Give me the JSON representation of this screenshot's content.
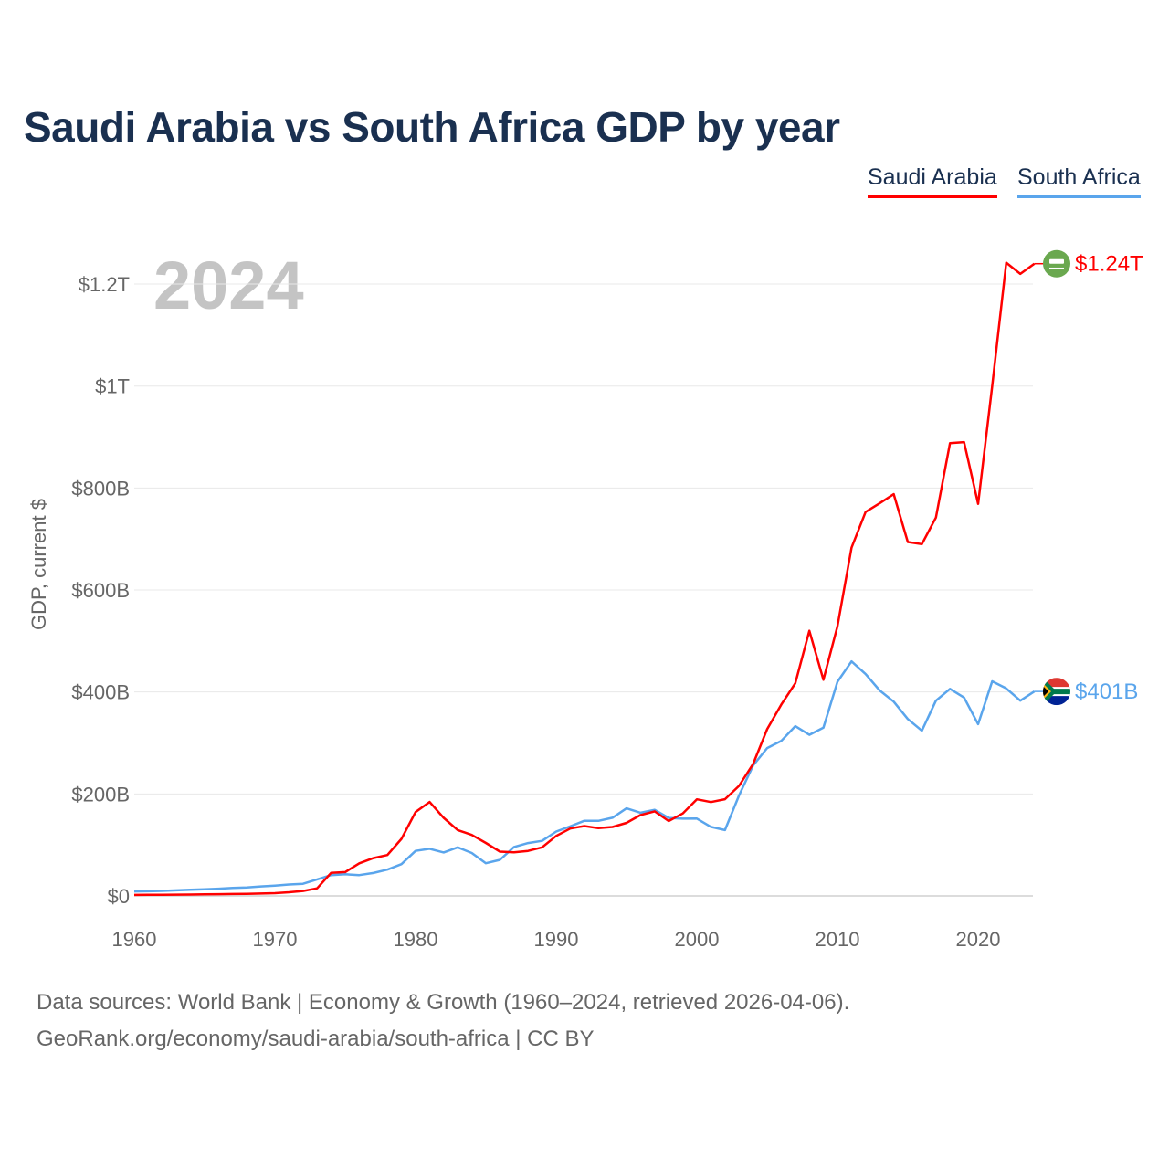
{
  "chart_data": {
    "type": "line",
    "title": "Saudi Arabia vs South Africa GDP by year",
    "ylabel": "GDP, current $",
    "xlabel": "",
    "year_watermark": "2024",
    "xlim": [
      1960,
      2024
    ],
    "ylim": [
      0,
      1300
    ],
    "x_ticks": [
      1960,
      1970,
      1980,
      1990,
      2000,
      2010,
      2020
    ],
    "y_ticks": [
      {
        "v": 0,
        "label": "$0"
      },
      {
        "v": 200,
        "label": "$200B"
      },
      {
        "v": 400,
        "label": "$400B"
      },
      {
        "v": 600,
        "label": "$600B"
      },
      {
        "v": 800,
        "label": "$800B"
      },
      {
        "v": 1000,
        "label": "$1T"
      },
      {
        "v": 1200,
        "label": "$1.2T"
      }
    ],
    "units": "billions USD",
    "legend_placement": "top-right",
    "x": [
      1960,
      1961,
      1962,
      1963,
      1964,
      1965,
      1966,
      1967,
      1968,
      1969,
      1970,
      1971,
      1972,
      1973,
      1974,
      1975,
      1976,
      1977,
      1978,
      1979,
      1980,
      1981,
      1982,
      1983,
      1984,
      1985,
      1986,
      1987,
      1988,
      1989,
      1990,
      1991,
      1992,
      1993,
      1994,
      1995,
      1996,
      1997,
      1998,
      1999,
      2000,
      2001,
      2002,
      2003,
      2004,
      2005,
      2006,
      2007,
      2008,
      2009,
      2010,
      2011,
      2012,
      2013,
      2014,
      2015,
      2016,
      2017,
      2018,
      2019,
      2020,
      2021,
      2022,
      2023,
      2024
    ],
    "series": [
      {
        "name": "Saudi Arabia",
        "color": "#ff0000",
        "end_label": "$1.24T",
        "flag": "saudi-arabia",
        "values": [
          2,
          2.1,
          2.3,
          2.5,
          2.7,
          3.0,
          3.4,
          3.8,
          4.2,
          4.6,
          5.4,
          7.2,
          9.7,
          14.9,
          45.4,
          46.8,
          64,
          74.2,
          80.3,
          111.9,
          164.5,
          184.3,
          153.2,
          129.2,
          119.6,
          103.9,
          86.9,
          85.7,
          88.3,
          95.3,
          117.6,
          132.2,
          137.1,
          132.9,
          135.2,
          143.3,
          158.7,
          165.9,
          146.8,
          161.7,
          189.5,
          184.1,
          189.6,
          215.8,
          258.7,
          327,
          375,
          417,
          520,
          424,
          529,
          683,
          753,
          770,
          788,
          694,
          690,
          742,
          888,
          890,
          769,
          1000,
          1242,
          1220,
          1240
        ]
      },
      {
        "name": "South Africa",
        "color": "#5aa5ec",
        "end_label": "$401B",
        "flag": "south-africa",
        "values": [
          8.7,
          9.2,
          9.9,
          10.9,
          12.0,
          13.0,
          14.1,
          15.6,
          16.7,
          18.7,
          20.3,
          22.4,
          23.9,
          32.5,
          40.9,
          42.4,
          40.8,
          45.0,
          51.5,
          62.4,
          88.3,
          92.5,
          85.3,
          95.2,
          84.1,
          64.1,
          70.8,
          96.0,
          103.7,
          108.0,
          126.2,
          136.4,
          147.4,
          147.2,
          153.4,
          171.7,
          163.2,
          168.9,
          152.9,
          151.5,
          151.8,
          135.4,
          129.1,
          197.0,
          255.8,
          290,
          304,
          333,
          316,
          330,
          420,
          460,
          435,
          403,
          381,
          347,
          324,
          383,
          406,
          389,
          337,
          421,
          407,
          383,
          401
        ]
      }
    ]
  },
  "footer": {
    "line1": "Data sources: World Bank | Economy & Growth (1960–2024, retrieved 2026-04-06).",
    "line2": "GeoRank.org/economy/saudi-arabia/south-africa | CC BY"
  }
}
